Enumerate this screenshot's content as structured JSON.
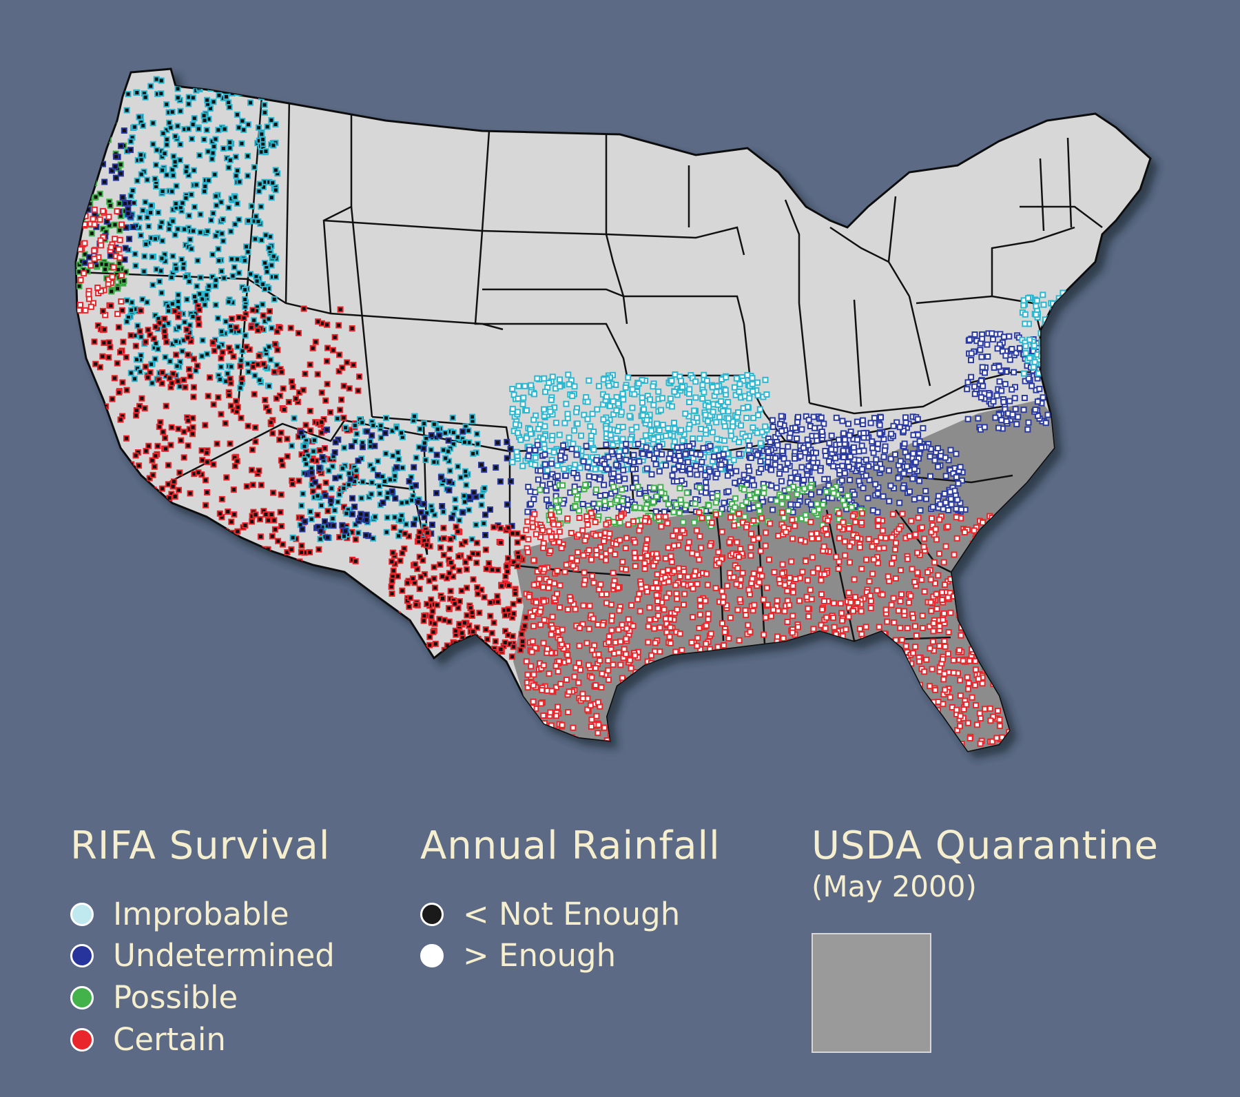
{
  "legend": {
    "survival": {
      "title": "RIFA Survival",
      "items": [
        {
          "label": "Improbable",
          "color": "#bfe8ef"
        },
        {
          "label": "Undetermined",
          "color": "#27349c"
        },
        {
          "label": "Possible",
          "color": "#44b24a"
        },
        {
          "label": "Certain",
          "color": "#e8262b"
        }
      ]
    },
    "rainfall": {
      "title": "Annual Rainfall",
      "items": [
        {
          "label": "< Not Enough",
          "color": "#1a1a1a"
        },
        {
          "label": "> Enough",
          "color": "#ffffff"
        }
      ]
    },
    "quarantine": {
      "title": "USDA Quarantine",
      "subtitle": "(May 2000)",
      "color": "#9a9a9a"
    }
  },
  "map_colors": {
    "background": "#5c6a85",
    "land": "#d7d7d7",
    "quarantine_fill": "#8c8c8c",
    "border": "#111111",
    "improbable_dot": "#2bb7cf",
    "undetermined_dot": "#2a3aa0",
    "possible_dot": "#3fb14a",
    "certain_dot": "#e8262b"
  }
}
